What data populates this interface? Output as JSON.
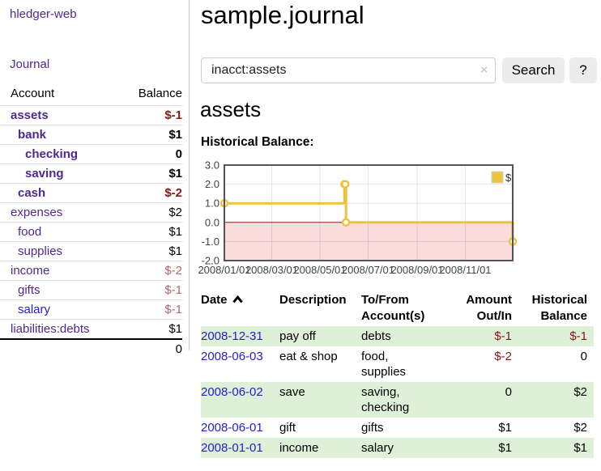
{
  "colors": {
    "purple": "#4e2a8e",
    "blue": "#2222cc",
    "neg-strong": "#8b1515",
    "neg-soft": "#b36b6b",
    "row-green": "#dff0d8",
    "gold": "#edc240",
    "pink": "#fbdcdc",
    "zero": "#8b1a1a"
  },
  "sidebar": {
    "brand": "hledger-web",
    "journal_label": "Journal",
    "accounts_table": {
      "headers": {
        "account": "Account",
        "balance": "Balance"
      },
      "rows": [
        {
          "name": "assets",
          "depth": 1,
          "bold": true,
          "balance": "$-1",
          "negative": "strong"
        },
        {
          "name": "bank",
          "depth": 2,
          "bold": true,
          "balance": "$1"
        },
        {
          "name": "checking",
          "depth": 3,
          "bold": true,
          "balance": "0"
        },
        {
          "name": "saving",
          "depth": 3,
          "bold": true,
          "balance": "$1"
        },
        {
          "name": "cash",
          "depth": 2,
          "bold": true,
          "balance": "$-2",
          "negative": "strong"
        },
        {
          "name": "expenses",
          "depth": 1,
          "bold": false,
          "balance": "$2"
        },
        {
          "name": "food",
          "depth": 2,
          "bold": false,
          "balance": "$1"
        },
        {
          "name": "supplies",
          "depth": 2,
          "bold": false,
          "balance": "$1"
        },
        {
          "name": "income",
          "depth": 1,
          "bold": false,
          "balance": "$-2",
          "negative": "soft"
        },
        {
          "name": "gifts",
          "depth": 2,
          "bold": false,
          "balance": "$-1",
          "negative": "soft"
        },
        {
          "name": "salary",
          "depth": 2,
          "bold": false,
          "balance": "$-1",
          "negative": "soft",
          "link_color": "blue"
        },
        {
          "name": "liabilities:debts",
          "depth": 1,
          "bold": false,
          "balance": "$1"
        }
      ],
      "total": "0"
    }
  },
  "header": {
    "title": "sample.journal"
  },
  "search": {
    "query": "inacct:assets",
    "clear_label": "×",
    "button_label": "Search",
    "help_label": "?"
  },
  "account_page": {
    "heading": "assets",
    "chart_title": "Historical Balance:"
  },
  "chart_data": {
    "type": "line",
    "title": "Historical Balance:",
    "interpolation": "step",
    "series": [
      {
        "name": "$",
        "color": "#edc240",
        "points": [
          {
            "date": "2008-01-01",
            "value": 1
          },
          {
            "date": "2008-06-01",
            "value": 2
          },
          {
            "date": "2008-06-02",
            "value": 2
          },
          {
            "date": "2008-06-03",
            "value": 0
          },
          {
            "date": "2008-12-31",
            "value": -1
          }
        ]
      }
    ],
    "x": {
      "range": [
        "2008-01-01",
        "2008-12-31"
      ],
      "tick_dates": [
        "2008-01-01",
        "2008-03-01",
        "2008-05-01",
        "2008-07-01",
        "2008-09-01",
        "2008-11-01"
      ],
      "tick_labels": [
        "2008/01/01",
        "2008/03/01",
        "2008/05/01",
        "2008/07/01",
        "2008/09/01",
        "2008/11/01"
      ]
    },
    "y": {
      "range": [
        -2,
        3
      ],
      "ticks": [
        3.0,
        2.0,
        1.0,
        0.0,
        -1.0,
        -2.0
      ],
      "tick_labels": [
        "3.0",
        "2.0",
        "1.0",
        "0.0",
        "-1.0",
        "-2.0"
      ]
    },
    "grid": true,
    "legend": {
      "label": "$",
      "position": "top-right"
    },
    "negative_region_color": "#fbdcdc",
    "zero_line_color": "#8b1a1a"
  },
  "register_table": {
    "headers": {
      "date": "Date",
      "description": "Description",
      "accounts": "To/From Account(s)",
      "amount": "Amount Out/In",
      "balance": "Historical Balance"
    },
    "sort": {
      "column": "date",
      "direction": "ascending"
    },
    "rows": [
      {
        "date": "2008-12-31",
        "description": "pay off",
        "accounts": "debts",
        "amount": "$-1",
        "balance": "$-1",
        "amount_negative": true,
        "balance_negative": true,
        "highlight": true
      },
      {
        "date": "2008-06-03",
        "description": "eat & shop",
        "accounts": "food, supplies",
        "amount": "$-2",
        "balance": "0",
        "amount_negative": true,
        "balance_negative": false,
        "highlight": false
      },
      {
        "date": "2008-06-02",
        "description": "save",
        "accounts": "saving, checking",
        "amount": "0",
        "balance": "$2",
        "amount_negative": false,
        "balance_negative": false,
        "highlight": true
      },
      {
        "date": "2008-06-01",
        "description": "gift",
        "accounts": "gifts",
        "amount": "$1",
        "balance": "$2",
        "amount_negative": false,
        "balance_negative": false,
        "highlight": false
      },
      {
        "date": "2008-01-01",
        "description": "income",
        "accounts": "salary",
        "amount": "$1",
        "balance": "$1",
        "amount_negative": false,
        "balance_negative": false,
        "highlight": true
      }
    ]
  }
}
